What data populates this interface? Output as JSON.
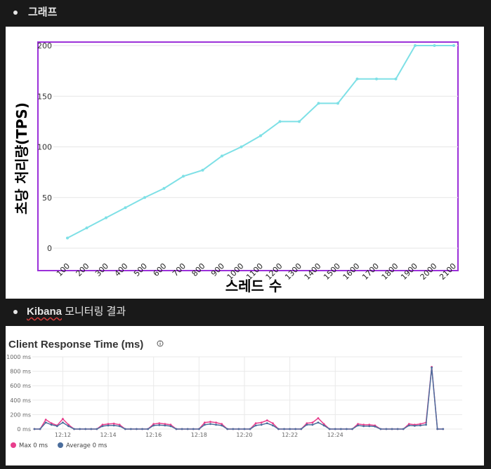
{
  "section1": {
    "label": "그래프"
  },
  "section2": {
    "label_word": "Kibana",
    "label_rest": "모니터링 결과"
  },
  "chart_data": [
    {
      "type": "line",
      "ylabel": "초당 처리량(TPS)",
      "xlabel": "스레드 수",
      "ylim": [
        0,
        200
      ],
      "yticks": [
        0,
        50,
        100,
        150,
        200
      ],
      "categories": [
        "100",
        "200",
        "300",
        "400",
        "500",
        "600",
        "700",
        "800",
        "900",
        "1000",
        "1100",
        "1200",
        "1300",
        "1400",
        "1500",
        "1600",
        "1700",
        "1800",
        "1900",
        "2000",
        "2100"
      ],
      "values": [
        10,
        20,
        30,
        40,
        50,
        59,
        71,
        77,
        91,
        100,
        111,
        125,
        125,
        143,
        143,
        167,
        167,
        167,
        200,
        200,
        200
      ],
      "line_color": "#7ee0e6",
      "frame_color": "#9b30d9",
      "grid": "horizontal"
    },
    {
      "type": "line",
      "title": "Client Response Time (ms)",
      "info_icon": "info-icon",
      "ylim": [
        0,
        1000
      ],
      "ytick_labels": [
        "1000 ms",
        "800 ms",
        "600 ms",
        "400 ms",
        "200 ms",
        "0 ms"
      ],
      "ytick_values": [
        1000,
        800,
        600,
        400,
        200,
        0
      ],
      "xtick_labels": [
        "12:12",
        "12:14",
        "12:16",
        "12:18",
        "12:20",
        "12:22",
        "12:24"
      ],
      "xtick_positions": [
        5,
        13,
        21,
        29,
        37,
        45,
        53
      ],
      "series": [
        {
          "name": "Max",
          "legend": "Max 0 ms",
          "color": "#e83e8c",
          "values": [
            0,
            0,
            130,
            80,
            50,
            140,
            60,
            0,
            0,
            0,
            0,
            0,
            60,
            70,
            75,
            60,
            0,
            0,
            0,
            0,
            0,
            70,
            80,
            70,
            60,
            0,
            0,
            0,
            0,
            0,
            90,
            100,
            90,
            70,
            0,
            0,
            0,
            0,
            0,
            80,
            90,
            120,
            80,
            0,
            0,
            0,
            0,
            0,
            80,
            90,
            150,
            70,
            0,
            0,
            0,
            0,
            0,
            70,
            60,
            60,
            50,
            0,
            0,
            0,
            0,
            0,
            70,
            60,
            70,
            90,
            860,
            0,
            0
          ]
        },
        {
          "name": "Average",
          "legend": "Average 0 ms",
          "color": "#4a6d9c",
          "values": [
            0,
            0,
            90,
            60,
            40,
            90,
            40,
            0,
            0,
            0,
            0,
            0,
            40,
            50,
            50,
            40,
            0,
            0,
            0,
            0,
            0,
            50,
            55,
            50,
            40,
            0,
            0,
            0,
            0,
            0,
            60,
            70,
            60,
            50,
            0,
            0,
            0,
            0,
            0,
            50,
            60,
            80,
            50,
            0,
            0,
            0,
            0,
            0,
            60,
            60,
            90,
            50,
            0,
            0,
            0,
            0,
            0,
            50,
            40,
            40,
            35,
            0,
            0,
            0,
            0,
            0,
            50,
            45,
            50,
            60,
            850,
            0,
            0
          ]
        }
      ]
    }
  ]
}
